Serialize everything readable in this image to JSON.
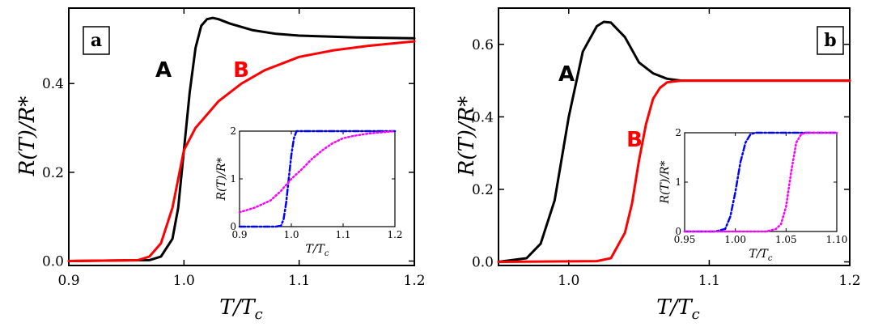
{
  "chart_data": [
    {
      "panel": "a",
      "type": "line",
      "xlabel_main": "T/T",
      "xlabel_sub": "c",
      "ylabel": "R(T)/R*",
      "xlim": [
        0.9,
        1.2
      ],
      "ylim": [
        -0.01,
        0.57
      ],
      "xticks": [
        0.9,
        1.0,
        1.1,
        1.2
      ],
      "xtick_labels": [
        "0.9",
        "1.0",
        "1.1",
        "1.2"
      ],
      "yticks": [
        0.0,
        0.2,
        0.4
      ],
      "ytick_labels": [
        "0.0",
        "0.2",
        "0.4"
      ],
      "series": [
        {
          "name": "A",
          "color": "#000000",
          "x": [
            0.9,
            0.97,
            0.98,
            0.99,
            0.995,
            1.0,
            1.005,
            1.01,
            1.015,
            1.02,
            1.025,
            1.03,
            1.04,
            1.06,
            1.08,
            1.1,
            1.15,
            1.2
          ],
          "y": [
            0.0,
            0.002,
            0.01,
            0.05,
            0.12,
            0.25,
            0.38,
            0.48,
            0.53,
            0.545,
            0.548,
            0.545,
            0.535,
            0.52,
            0.512,
            0.508,
            0.504,
            0.502
          ]
        },
        {
          "name": "B",
          "color": "#ff0000",
          "x": [
            0.9,
            0.96,
            0.97,
            0.98,
            0.99,
            1.0,
            1.01,
            1.02,
            1.03,
            1.05,
            1.07,
            1.1,
            1.13,
            1.16,
            1.2
          ],
          "y": [
            0.0,
            0.002,
            0.01,
            0.04,
            0.12,
            0.25,
            0.3,
            0.33,
            0.36,
            0.4,
            0.43,
            0.46,
            0.475,
            0.485,
            0.495
          ]
        }
      ],
      "inset": {
        "xlim": [
          0.9,
          1.2
        ],
        "ylim": [
          0,
          2
        ],
        "xticks": [
          0.9,
          1.0,
          1.1,
          1.2
        ],
        "xtick_labels": [
          "0.9",
          "1.0",
          "1.1",
          "1.2"
        ],
        "yticks": [
          0,
          1,
          2
        ],
        "ytick_labels": [
          "0",
          "1",
          "2"
        ],
        "xlabel_main": "T/T",
        "xlabel_sub": "c",
        "ylabel": "R(T)/R*",
        "series": [
          {
            "name": "blue dash-dot",
            "color": "#0000ff",
            "style": "dashdot",
            "x": [
              0.9,
              0.97,
              0.98,
              0.985,
              0.99,
              0.995,
              1.0,
              1.005,
              1.01,
              1.2
            ],
            "y": [
              0.0,
              0.0,
              0.02,
              0.15,
              0.5,
              1.0,
              1.5,
              1.85,
              2.0,
              2.0
            ]
          },
          {
            "name": "magenta dotted",
            "color": "#ff00ff",
            "style": "dotted",
            "x": [
              0.9,
              0.93,
              0.96,
              0.98,
              1.0,
              1.02,
              1.04,
              1.06,
              1.08,
              1.1,
              1.12,
              1.15,
              1.18,
              1.2
            ],
            "y": [
              0.3,
              0.4,
              0.55,
              0.75,
              1.0,
              1.2,
              1.42,
              1.6,
              1.75,
              1.85,
              1.9,
              1.95,
              1.98,
              2.0
            ]
          }
        ]
      }
    },
    {
      "panel": "b",
      "type": "line",
      "xlabel_main": "T/T",
      "xlabel_sub": "c",
      "ylabel": "R(T)/R*",
      "xlim": [
        0.95,
        1.2
      ],
      "ylim": [
        -0.01,
        0.7
      ],
      "xticks": [
        1.0,
        1.1,
        1.2
      ],
      "xtick_labels": [
        "1.0",
        "1.1",
        "1.2"
      ],
      "yticks": [
        0.0,
        0.2,
        0.4,
        0.6
      ],
      "ytick_labels": [
        "0.0",
        "0.2",
        "0.4",
        "0.6"
      ],
      "series": [
        {
          "name": "A",
          "color": "#000000",
          "x": [
            0.95,
            0.97,
            0.98,
            0.99,
            1.0,
            1.01,
            1.02,
            1.025,
            1.03,
            1.04,
            1.05,
            1.06,
            1.07,
            1.08,
            1.1,
            1.2
          ],
          "y": [
            0.0,
            0.01,
            0.05,
            0.17,
            0.4,
            0.58,
            0.65,
            0.662,
            0.66,
            0.62,
            0.55,
            0.52,
            0.505,
            0.5,
            0.5,
            0.5
          ]
        },
        {
          "name": "B",
          "color": "#ff0000",
          "x": [
            0.95,
            1.02,
            1.03,
            1.04,
            1.045,
            1.05,
            1.055,
            1.06,
            1.065,
            1.07,
            1.08,
            1.2
          ],
          "y": [
            0.0,
            0.002,
            0.01,
            0.08,
            0.16,
            0.28,
            0.38,
            0.45,
            0.48,
            0.495,
            0.5,
            0.5
          ]
        }
      ],
      "inset": {
        "xlim": [
          0.95,
          1.1
        ],
        "ylim": [
          0,
          2
        ],
        "xticks": [
          0.95,
          1.0,
          1.05,
          1.1
        ],
        "xtick_labels": [
          "0.95",
          "1.00",
          "1.05",
          "1.10"
        ],
        "yticks": [
          0,
          1,
          2
        ],
        "ytick_labels": [
          "0",
          "1",
          "2"
        ],
        "xlabel_main": "T/T",
        "xlabel_sub": "c",
        "ylabel": "R(T)/R*",
        "series": [
          {
            "name": "blue dash-dot",
            "color": "#0000ff",
            "style": "dashdot",
            "x": [
              0.95,
              0.98,
              0.99,
              0.995,
              1.0,
              1.005,
              1.01,
              1.015,
              1.02,
              1.1
            ],
            "y": [
              0.0,
              0.0,
              0.05,
              0.3,
              0.8,
              1.4,
              1.8,
              1.97,
              2.0,
              2.0
            ]
          },
          {
            "name": "magenta dotted",
            "color": "#ff00ff",
            "style": "dotted",
            "x": [
              0.95,
              1.03,
              1.04,
              1.045,
              1.05,
              1.055,
              1.06,
              1.065,
              1.07,
              1.1
            ],
            "y": [
              0.0,
              0.0,
              0.05,
              0.15,
              0.5,
              1.2,
              1.8,
              1.97,
              2.0,
              2.0
            ]
          }
        ]
      }
    }
  ],
  "labels": {
    "panel_a": "a",
    "panel_b": "b",
    "curve_A": "A",
    "curve_B": "B"
  },
  "colors": {
    "A": "#000000",
    "B": "#ff0000",
    "blue": "#0000ff",
    "magenta": "#ff00ff"
  }
}
